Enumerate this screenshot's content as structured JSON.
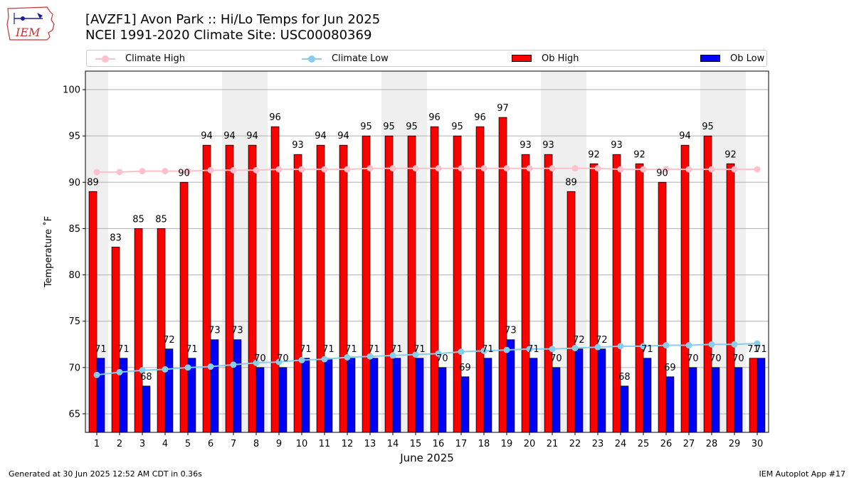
{
  "header": {
    "title_line1": "[AVZF1] Avon Park :: Hi/Lo Temps for Jun 2025",
    "title_line2": "NCEI 1991-2020 Climate Site: USC00080369"
  },
  "logo": {
    "text": "IEM",
    "color": "#cc3333"
  },
  "footer": {
    "left": "Generated at 30 Jun 2025 12:52 AM CDT in 0.36s",
    "right": "IEM Autoplot App #17"
  },
  "legend": {
    "placement": "top",
    "items": [
      {
        "label": "Climate High",
        "kind": "line",
        "color": "#ffc0cb"
      },
      {
        "label": "Climate Low",
        "kind": "line",
        "color": "#87ceeb"
      },
      {
        "label": "Ob High",
        "kind": "bar",
        "color": "#ff0000"
      },
      {
        "label": "Ob Low",
        "kind": "bar",
        "color": "#0000ff"
      }
    ]
  },
  "chart_data": {
    "type": "bar",
    "xlabel": "June 2025",
    "ylabel": "Temperature ˚F",
    "ylim": [
      63,
      102
    ],
    "yticks": [
      65,
      70,
      75,
      80,
      85,
      90,
      95,
      100
    ],
    "grid": "horizontal",
    "weekend_shading": [
      [
        1,
        1
      ],
      [
        7,
        8
      ],
      [
        14,
        15
      ],
      [
        21,
        22
      ],
      [
        28,
        29
      ]
    ],
    "categories": [
      "1",
      "2",
      "3",
      "4",
      "5",
      "6",
      "7",
      "8",
      "9",
      "10",
      "11",
      "12",
      "13",
      "14",
      "15",
      "16",
      "17",
      "18",
      "19",
      "20",
      "21",
      "22",
      "23",
      "24",
      "25",
      "26",
      "27",
      "28",
      "29",
      "30"
    ],
    "series": [
      {
        "name": "Ob High",
        "kind": "bar",
        "color": "#ff0000",
        "values": [
          89,
          83,
          85,
          85,
          90,
          94,
          94,
          94,
          96,
          93,
          94,
          94,
          95,
          95,
          95,
          96,
          95,
          96,
          97,
          93,
          93,
          89,
          92,
          93,
          92,
          90,
          94,
          95,
          92,
          71
        ]
      },
      {
        "name": "Ob Low",
        "kind": "bar",
        "color": "#0000ff",
        "values": [
          71,
          71,
          68,
          72,
          71,
          73,
          73,
          70,
          70,
          71,
          71,
          71,
          71,
          71,
          71,
          70,
          69,
          71,
          73,
          71,
          70,
          72,
          72,
          68,
          71,
          69,
          70,
          70,
          70,
          71
        ]
      },
      {
        "name": "Climate High",
        "kind": "line",
        "color": "#ffc0cb",
        "values": [
          91.1,
          91.1,
          91.2,
          91.2,
          91.2,
          91.3,
          91.3,
          91.3,
          91.4,
          91.4,
          91.4,
          91.4,
          91.5,
          91.5,
          91.5,
          91.5,
          91.5,
          91.5,
          91.5,
          91.5,
          91.5,
          91.5,
          91.5,
          91.4,
          91.4,
          91.4,
          91.4,
          91.4,
          91.4,
          91.4
        ]
      },
      {
        "name": "Climate Low",
        "kind": "line",
        "color": "#87ceeb",
        "values": [
          69.2,
          69.5,
          69.7,
          69.8,
          70.0,
          70.1,
          70.3,
          70.5,
          70.6,
          70.8,
          70.9,
          71.1,
          71.2,
          71.3,
          71.4,
          71.5,
          71.7,
          71.8,
          71.9,
          72.0,
          72.0,
          72.1,
          72.2,
          72.3,
          72.3,
          72.4,
          72.4,
          72.5,
          72.5,
          72.6
        ]
      }
    ]
  }
}
